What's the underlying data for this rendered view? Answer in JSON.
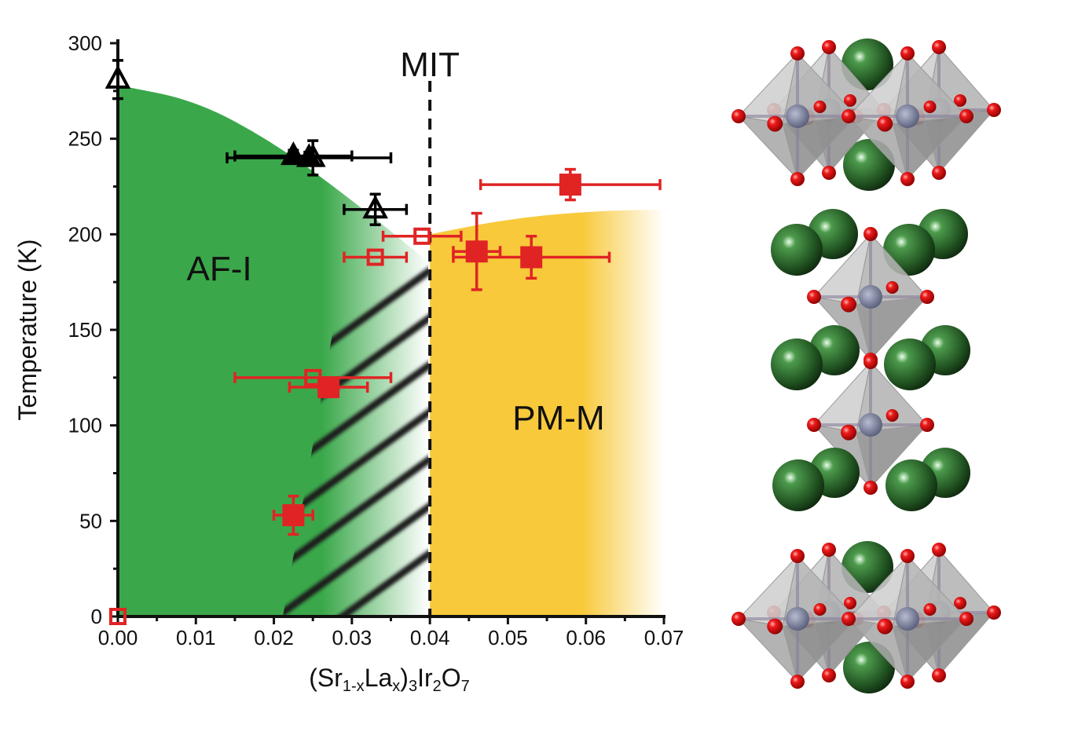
{
  "chart_data": {
    "type": "scatter",
    "xlabel": {
      "parts": [
        {
          "t": "(Sr",
          "s": ""
        },
        {
          "t": "1-x",
          "s": "sub"
        },
        {
          "t": "La",
          "s": ""
        },
        {
          "t": "x",
          "s": "sub"
        },
        {
          "t": ")",
          "s": ""
        },
        {
          "t": "3",
          "s": "sub"
        },
        {
          "t": "Ir",
          "s": ""
        },
        {
          "t": "2",
          "s": "sub"
        },
        {
          "t": "O",
          "s": ""
        },
        {
          "t": "7",
          "s": "sub"
        }
      ]
    },
    "ylabel": "Temperature (K)",
    "xlim": [
      0,
      0.07
    ],
    "ylim": [
      0,
      300
    ],
    "xticks": [
      "0.00",
      "0.01",
      "0.02",
      "0.03",
      "0.04",
      "0.05",
      "0.06",
      "0.07"
    ],
    "yticks": [
      "0",
      "50",
      "100",
      "150",
      "200",
      "250",
      "300"
    ],
    "regions": [
      {
        "label": "AF-I",
        "color": "#3aa84a",
        "label_pos": [
          0.013,
          182
        ]
      },
      {
        "label": "PM-M",
        "color": "#f8c93a",
        "label_pos": [
          0.0565,
          104
        ]
      }
    ],
    "mit": {
      "label": "MIT",
      "x": 0.04
    },
    "af_boundary": [
      [
        0,
        278
      ],
      [
        0.01,
        270
      ],
      [
        0.02,
        248
      ],
      [
        0.03,
        218
      ],
      [
        0.04,
        185
      ]
    ],
    "pm_boundary": [
      [
        0.04,
        200
      ],
      [
        0.05,
        208
      ],
      [
        0.06,
        212
      ],
      [
        0.07,
        213
      ]
    ],
    "series": [
      {
        "marker": "triangle-open",
        "color": "#000000",
        "points": [
          {
            "x": 0.0,
            "y": 281,
            "xerr": 0.0,
            "yerr": 10
          },
          {
            "x": 0.025,
            "y": 240,
            "xerr": 0.0,
            "yerr": 9
          },
          {
            "x": 0.033,
            "y": 213,
            "xerr": 0.004,
            "yerr": 8
          }
        ]
      },
      {
        "marker": "triangle-filled",
        "color": "#000000",
        "points": [
          {
            "x": 0.0225,
            "y": 241,
            "xerr": 0.0075,
            "yerr": 3
          },
          {
            "x": 0.0245,
            "y": 240,
            "xerr": 0.0105,
            "yerr": 3
          }
        ]
      },
      {
        "marker": "square-open",
        "color": "#e02424",
        "points": [
          {
            "x": 0.0,
            "y": 0,
            "xerr": 0.0,
            "yerr": 0
          },
          {
            "x": 0.039,
            "y": 199,
            "xerr": 0.005,
            "yerr": 0
          },
          {
            "x": 0.033,
            "y": 188,
            "xerr": 0.004,
            "yerr": 0
          },
          {
            "x": 0.025,
            "y": 125,
            "xerr": 0.01,
            "yerr": 0
          }
        ]
      },
      {
        "marker": "square-filled",
        "color": "#e02424",
        "points": [
          {
            "x": 0.058,
            "y": 226,
            "xerr": 0.0115,
            "yerr": 8
          },
          {
            "x": 0.046,
            "y": 191,
            "xerr": 0.003,
            "yerr": 20
          },
          {
            "x": 0.053,
            "y": 188,
            "xerr": 0.01,
            "yerr": 11
          },
          {
            "x": 0.027,
            "y": 120,
            "xerr": 0.005,
            "yerr": 0
          },
          {
            "x": 0.0225,
            "y": 53,
            "xerr": 0.0025,
            "yerr": 10
          }
        ]
      }
    ]
  },
  "crystal_structure": {
    "octahedra": "#bdbdbd",
    "atom_ir": "#6f7590",
    "atom_o": "#e01010",
    "atom_sr": "#2f6b2f"
  }
}
